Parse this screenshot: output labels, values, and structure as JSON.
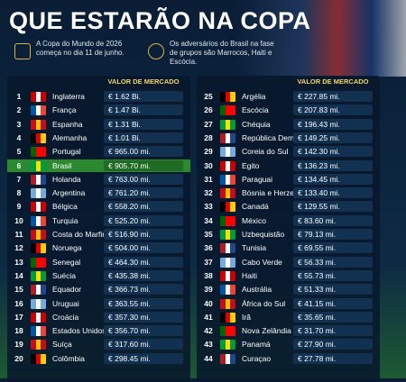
{
  "header": {
    "title": "QUE ESTARÃO NA COPA"
  },
  "info": [
    {
      "text": "A Copa do Mundo de 2026 começa no dia 11 de junho."
    },
    {
      "text": "Os adversários do Brasil na fase de grupos são Marrocos, Haiti e Escócia."
    }
  ],
  "tables": [
    {
      "column_header": "VALOR DE MERCADO",
      "rows": [
        [
          "1",
          "Inglaterra",
          "€ 1.62 Bi."
        ],
        [
          "2",
          "França",
          "€ 1.47 Bi."
        ],
        [
          "3",
          "Espanha",
          "€ 1.31 Bi."
        ],
        [
          "4",
          "Alemanha",
          "€ 1.01 Bi."
        ],
        [
          "5",
          "Portugal",
          "€ 965.00 mi."
        ],
        [
          "6",
          "Brasil",
          "€ 905.70 mi."
        ],
        [
          "7",
          "Holanda",
          "€ 763.00 mi."
        ],
        [
          "8",
          "Argentina",
          "€ 761.20 mi."
        ],
        [
          "9",
          "Bélgica",
          "€ 558.20 mi."
        ],
        [
          "10",
          "Turquia",
          "€ 525.20 mi."
        ],
        [
          "11",
          "Costa do Marfim",
          "€ 516.90 mi."
        ],
        [
          "12",
          "Noruega",
          "€ 504.00 mi."
        ],
        [
          "13",
          "Senegal",
          "€ 464.30 mi."
        ],
        [
          "14",
          "Suécia",
          "€ 435.38 mi."
        ],
        [
          "15",
          "Equador",
          "€ 366.73 mi."
        ],
        [
          "16",
          "Uruguai",
          "€ 363.55 mi."
        ],
        [
          "17",
          "Croácia",
          "€ 357.30 mi."
        ],
        [
          "18",
          "Estados Unidos",
          "€ 356.70 mi."
        ],
        [
          "19",
          "Suíça",
          "€ 317.60 mi."
        ],
        [
          "20",
          "Colômbia",
          "€ 298.45 mi."
        ]
      ]
    },
    {
      "column_header": "VALOR DE MERCADO",
      "rows": [
        [
          "25",
          "Argélia",
          "€ 227.85 mi."
        ],
        [
          "26",
          "Escócia",
          "€ 207.83 mi."
        ],
        [
          "27",
          "Chéquia",
          "€ 196.43 mi."
        ],
        [
          "28",
          "República Democrática",
          "€ 149.25 mi."
        ],
        [
          "29",
          "Coreia do Sul",
          "€ 142.30 mi."
        ],
        [
          "30",
          "Egito",
          "€ 136.23 mi."
        ],
        [
          "31",
          "Paraguai",
          "€ 134.45 mi."
        ],
        [
          "32",
          "Bósnia e Herzegovina",
          "€ 133.40 mi."
        ],
        [
          "33",
          "Canadá",
          "€ 129.55 mi."
        ],
        [
          "34",
          "México",
          "€ 83.60 mi."
        ],
        [
          "35",
          "Uzbequistão",
          "€ 79.13 mi."
        ],
        [
          "36",
          "Tunisia",
          "€ 69.55 mi."
        ],
        [
          "37",
          "Cabo Verde",
          "€ 56.33 mi."
        ],
        [
          "38",
          "Haiti",
          "€ 55.73 mi."
        ],
        [
          "39",
          "Austrália",
          "€ 51.33 mi."
        ],
        [
          "40",
          "África do Sul",
          "€ 41.15 mi."
        ],
        [
          "41",
          "Irã",
          "€ 35.65 mi."
        ],
        [
          "42",
          "Nova Zelândia",
          "€ 31.70 mi."
        ],
        [
          "43",
          "Panamá",
          "€ 27.90 mi."
        ],
        [
          "44",
          "Curaçao",
          "€ 27.78 mi."
        ]
      ]
    }
  ],
  "highlight_row": {
    "table": 0,
    "row": 5
  }
}
